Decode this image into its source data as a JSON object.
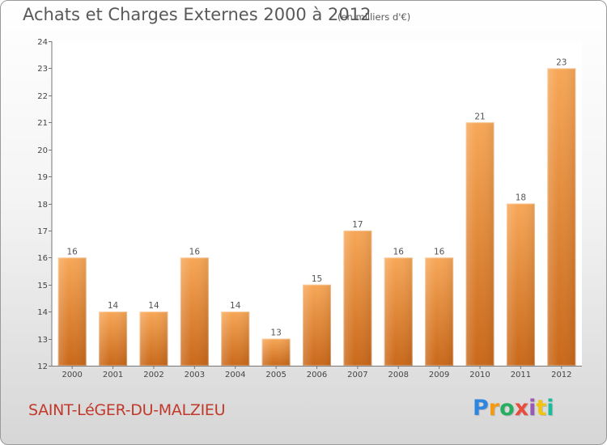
{
  "header": {
    "title": "Achats et Charges Externes 2000 à 2012",
    "unit": "(en milliers d'€)"
  },
  "footer": {
    "commune": "SAINT-LéGER-DU-MALZIEU",
    "brand": "Proxiti",
    "brand_letters": [
      "P",
      "r",
      "o",
      "x",
      "i",
      "t",
      "i"
    ],
    "brand_colors": [
      "#2e86de",
      "#f39c12",
      "#27ae60",
      "#e74c3c",
      "#9b59b6",
      "#f1c40f",
      "#1abc9c"
    ]
  },
  "colors": {
    "bar_top": "#f7a757",
    "bar_bottom": "#c9681a",
    "title": "#595959",
    "commune": "#c0392b"
  },
  "chart_data": {
    "type": "bar",
    "title": "Achats et Charges Externes 2000 à 2012",
    "subtitle": "(en milliers d'€)",
    "xlabel": "",
    "ylabel": "",
    "categories": [
      "2000",
      "2001",
      "2002",
      "2003",
      "2004",
      "2005",
      "2006",
      "2007",
      "2008",
      "2009",
      "2010",
      "2011",
      "2012"
    ],
    "values": [
      16,
      14,
      14,
      16,
      14,
      13,
      15,
      17,
      16,
      16,
      21,
      18,
      23
    ],
    "ylim": [
      12,
      24
    ],
    "yticks": [
      12,
      13,
      14,
      15,
      16,
      17,
      18,
      19,
      20,
      21,
      22,
      23,
      24
    ],
    "grid": false,
    "data_labels": true
  }
}
